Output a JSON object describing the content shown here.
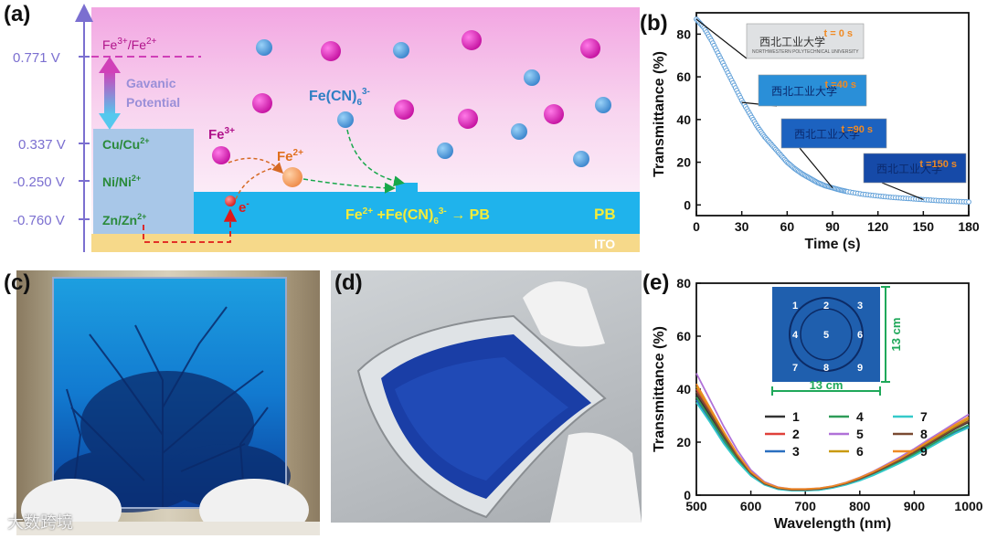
{
  "panels": {
    "a": "(a)",
    "b": "(b)",
    "c": "(c)",
    "d": "(d)",
    "e": "(e)"
  },
  "diagram_a": {
    "potentials": [
      "0.771 V",
      "0.337 V",
      "-0.250 V",
      "-0.760 V"
    ],
    "couples": [
      "Cu/Cu",
      "Ni/Ni",
      "Zn/Zn"
    ],
    "couple_sup": "2+",
    "fe_couple_base1": "Fe",
    "fe_couple_sup1": "3+",
    "fe_couple_sep": "/Fe",
    "fe_couple_sup2": "2+",
    "galvanic_line1": "Gavanic",
    "galvanic_line2": "Potential",
    "fe3": "Fe",
    "fe3_sup": "3+",
    "fe2": "Fe",
    "fe2_sup": "2+",
    "electron": "e",
    "electron_sup": "-",
    "ferricyanide": "Fe(CN)",
    "ferricyanide_sub": "6",
    "ferricyanide_sup": "3-",
    "reaction_a": "Fe",
    "reaction_a_sup": "2+",
    "reaction_b": " +Fe(CN)",
    "reaction_b_sub": "6",
    "reaction_b_sup": "3-",
    "reaction_c": " → PB",
    "pb_label": "PB",
    "ito_label": "ITO",
    "colors": {
      "magenta": "#d63bc0",
      "blue": "#4a9ad8",
      "accent": "#7b6fd0",
      "film": "#1fb3ec"
    }
  },
  "chart_data": [
    {
      "type": "line",
      "xlabel": "Time (s)",
      "ylabel": "Transmittance (%)",
      "xlim": [
        0,
        180
      ],
      "ylim": [
        -5,
        90
      ],
      "xticks": [
        0,
        30,
        60,
        90,
        120,
        150,
        180
      ],
      "yticks": [
        0,
        20,
        40,
        60,
        80
      ],
      "series": [
        {
          "x": [
            0,
            5,
            10,
            15,
            20,
            25,
            30,
            35,
            40,
            45,
            50,
            55,
            60,
            65,
            70,
            75,
            80,
            85,
            90,
            95,
            100,
            110,
            120,
            130,
            140,
            150,
            160,
            170,
            180
          ],
          "y": [
            87,
            83,
            77,
            70,
            63,
            56,
            49,
            43,
            37,
            32,
            28,
            24,
            20,
            17,
            14.5,
            12.5,
            10.5,
            9,
            8,
            7,
            6.2,
            5,
            4.2,
            3.5,
            3,
            2.5,
            2,
            1.7,
            1.4
          ]
        }
      ],
      "annotations": [
        "t = 0 s",
        "t =40 s",
        "t =90 s",
        "t =150 s"
      ],
      "inset_text": "西北工业大学",
      "inset_subtext": "NORTHWESTERN POLYTECHNICAL UNIVERSITY"
    },
    {
      "type": "line",
      "xlabel": "Wavelength (nm)",
      "ylabel": "Transmittance (%)",
      "xlim": [
        500,
        1000
      ],
      "ylim": [
        0,
        80
      ],
      "xticks": [
        500,
        600,
        700,
        800,
        900,
        1000
      ],
      "yticks": [
        0,
        20,
        40,
        60,
        80
      ],
      "x": [
        500,
        525,
        550,
        575,
        600,
        625,
        650,
        675,
        700,
        725,
        750,
        775,
        800,
        825,
        850,
        875,
        900,
        925,
        950,
        975,
        1000
      ],
      "series": [
        {
          "name": "1",
          "color": "#333333",
          "y": [
            38,
            30,
            22,
            14,
            8,
            4,
            2.5,
            2,
            2,
            2.2,
            3,
            4.2,
            6,
            8,
            10.5,
            13,
            16,
            19,
            22,
            25,
            27.5
          ]
        },
        {
          "name": "2",
          "color": "#e0413a",
          "y": [
            40,
            32,
            23,
            15,
            8.5,
            4.5,
            2.8,
            2.2,
            2.2,
            2.5,
            3.2,
            4.5,
            6.3,
            8.5,
            11,
            13.5,
            16.5,
            19.5,
            22.5,
            25.5,
            28
          ]
        },
        {
          "name": "3",
          "color": "#2a6fc0",
          "y": [
            36,
            28,
            20,
            13,
            7.5,
            4,
            2.3,
            1.8,
            1.8,
            2,
            2.8,
            4,
            5.6,
            7.6,
            10,
            12.5,
            15.2,
            18,
            21,
            23.8,
            26
          ]
        },
        {
          "name": "4",
          "color": "#2e9c58",
          "y": [
            37,
            29,
            21,
            13.5,
            7.8,
            4.2,
            2.4,
            1.9,
            1.9,
            2.1,
            2.9,
            4.1,
            5.8,
            7.8,
            10.2,
            12.7,
            15.5,
            18.3,
            21.3,
            24.2,
            26.5
          ]
        },
        {
          "name": "5",
          "color": "#b071d8",
          "y": [
            46,
            36,
            26,
            17,
            9.5,
            5,
            3,
            2.3,
            2.3,
            2.6,
            3.4,
            4.8,
            6.7,
            9,
            11.7,
            14.5,
            17.5,
            20.8,
            24,
            27.3,
            30.5
          ]
        },
        {
          "name": "6",
          "color": "#c99a10",
          "y": [
            41,
            32.5,
            23.5,
            15.2,
            8.6,
            4.6,
            2.8,
            2.2,
            2.2,
            2.4,
            3.2,
            4.5,
            6.3,
            8.5,
            11,
            13.6,
            16.6,
            19.6,
            22.8,
            26,
            28.8
          ]
        },
        {
          "name": "7",
          "color": "#35c9c9",
          "y": [
            35,
            27.5,
            19.5,
            12.8,
            7.3,
            3.9,
            2.2,
            1.7,
            1.7,
            1.9,
            2.7,
            3.9,
            5.5,
            7.5,
            9.8,
            12.2,
            14.8,
            17.6,
            20.5,
            23.2,
            25.5
          ]
        },
        {
          "name": "8",
          "color": "#7a4a32",
          "y": [
            39,
            31,
            22.5,
            14.6,
            8.2,
            4.3,
            2.6,
            2,
            2,
            2.3,
            3.1,
            4.4,
            6.1,
            8.3,
            10.8,
            13.3,
            16.2,
            19.2,
            22.3,
            25.3,
            28
          ]
        },
        {
          "name": "9",
          "color": "#ee8a25",
          "y": [
            42,
            33,
            24,
            15.6,
            8.8,
            4.7,
            2.9,
            2.3,
            2.3,
            2.6,
            3.4,
            4.7,
            6.6,
            8.8,
            11.4,
            14,
            17,
            20.2,
            23.4,
            26.6,
            29.5
          ]
        }
      ],
      "inset_numbers": [
        "1",
        "2",
        "3",
        "4",
        "5",
        "6",
        "7",
        "8",
        "9"
      ],
      "inset_dim_h": "13 cm",
      "inset_dim_v": "13 cm"
    }
  ],
  "watermark": "大数跨境"
}
